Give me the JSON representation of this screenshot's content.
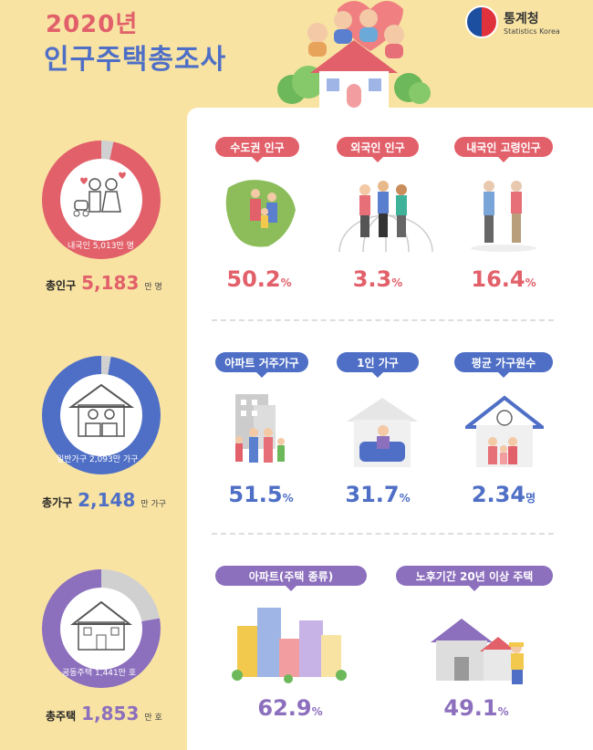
{
  "header": {
    "year": "2020년",
    "title": "인구주택총조사"
  },
  "logo": {
    "name_ko": "통계청",
    "name_en": "Statistics Korea"
  },
  "population": {
    "total_label": "총인구",
    "total_value": "5,183",
    "total_unit": "만 명",
    "donut_label": "내국인 5,013만 명",
    "donut_fraction": 0.967,
    "color": "#e2606a",
    "stats": [
      {
        "label": "수도권 인구",
        "value": "50.2",
        "unit": "%"
      },
      {
        "label": "외국인 인구",
        "value": "3.3",
        "unit": "%"
      },
      {
        "label": "내국인 고령인구",
        "value": "16.4",
        "unit": "%"
      }
    ]
  },
  "households": {
    "total_label": "총가구",
    "total_value": "2,148",
    "total_unit": "만 가구",
    "donut_label": "일반가구 2,093만 가구",
    "donut_fraction": 0.974,
    "color": "#4f6fc6",
    "stats": [
      {
        "label": "아파트 거주가구",
        "value": "51.5",
        "unit": "%"
      },
      {
        "label": "1인 가구",
        "value": "31.7",
        "unit": "%"
      },
      {
        "label": "평균 가구원수",
        "value": "2.34",
        "unit": "명"
      }
    ]
  },
  "housing": {
    "total_label": "총주택",
    "total_value": "1,853",
    "total_unit": "만 호",
    "donut_label": "공동주택 1,441만 호",
    "donut_fraction": 0.778,
    "color": "#8c6fbd",
    "stats": [
      {
        "label": "아파트(주택 종류)",
        "value": "62.9",
        "unit": "%"
      },
      {
        "label": "노후기간 20년 이상 주택",
        "value": "49.1",
        "unit": "%"
      }
    ]
  }
}
